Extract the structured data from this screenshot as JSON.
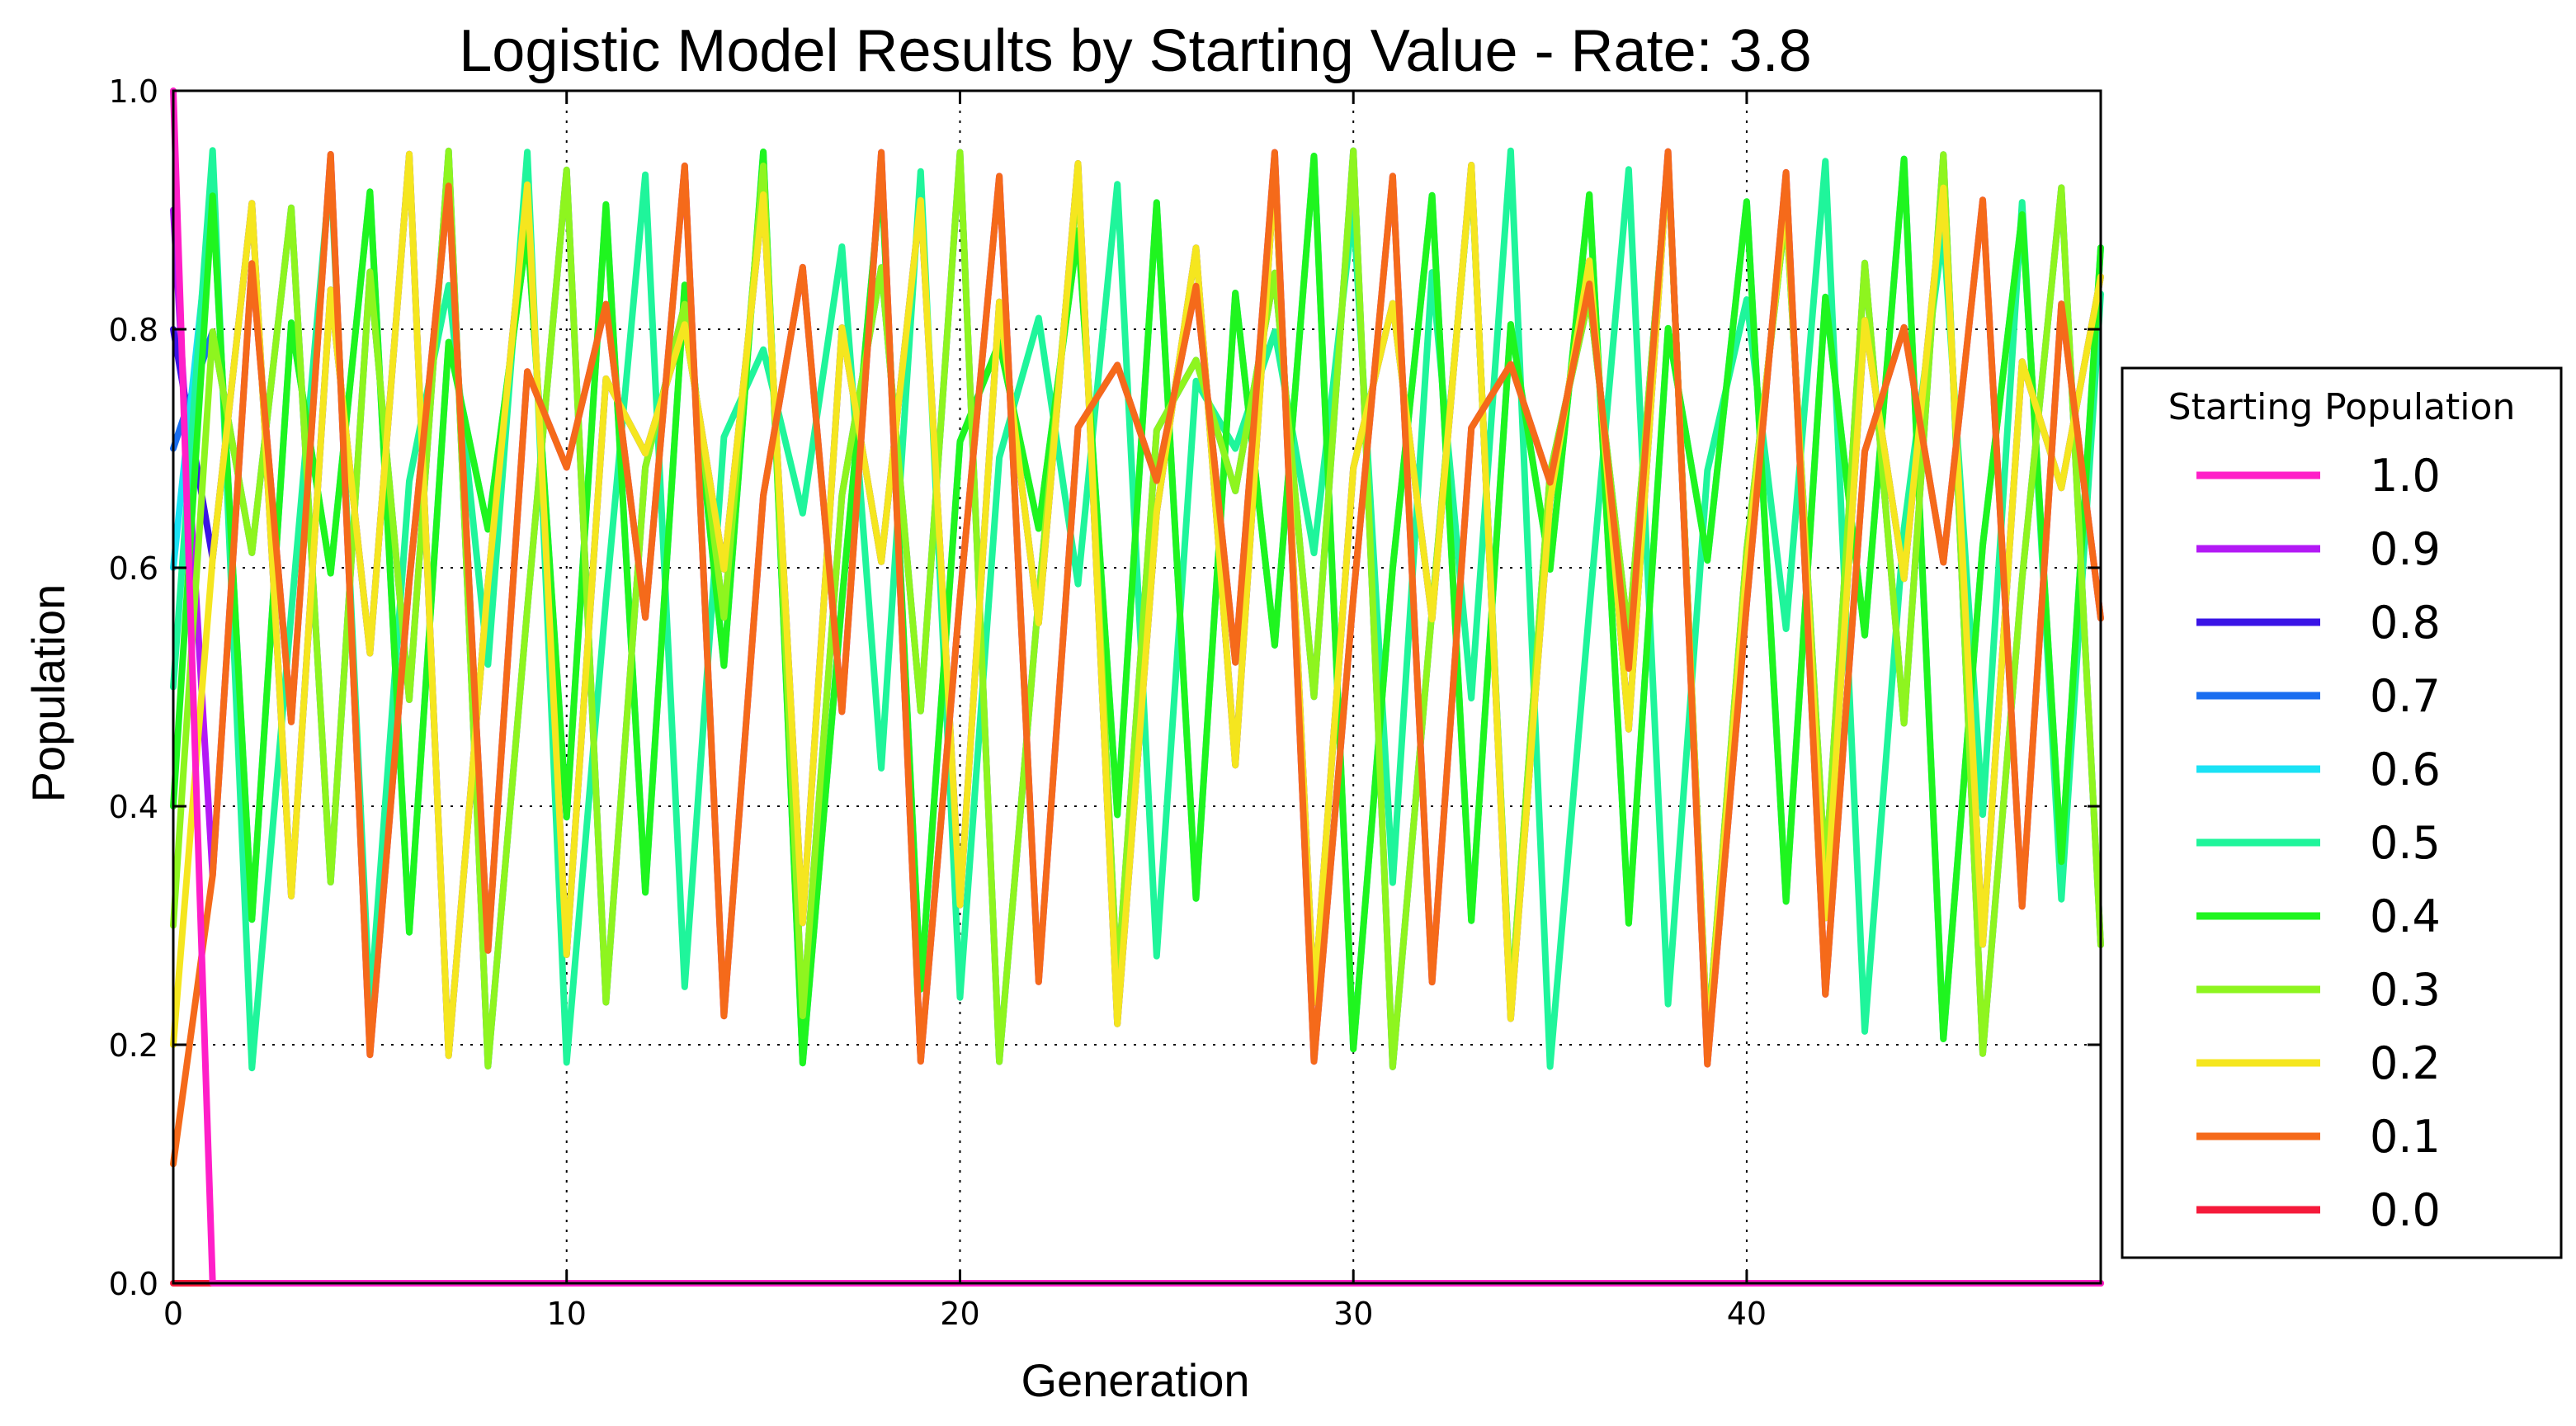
{
  "chart_data": {
    "type": "line",
    "title": "Logistic Model Results by Starting Value - Rate: 3.8",
    "xlabel": "Generation",
    "ylabel": "Population",
    "xlim": [
      0,
      49
    ],
    "ylim": [
      0.0,
      1.0
    ],
    "x_ticks": [
      0,
      10,
      20,
      30,
      40
    ],
    "x_tick_labels": [
      "0",
      "10",
      "20",
      "30",
      "40"
    ],
    "y_ticks": [
      0.0,
      0.2,
      0.4,
      0.6,
      0.8,
      1.0
    ],
    "y_tick_labels": [
      "0.0",
      "0.2",
      "0.4",
      "0.6",
      "0.8",
      "1.0"
    ],
    "grid": true,
    "legend_title": "Starting Population",
    "legend_position": "outside-right",
    "rate": 3.8,
    "generations": 50,
    "series": [
      {
        "name": "1.0",
        "color": "#ff1fc8",
        "start": 1.0
      },
      {
        "name": "0.9",
        "color": "#b319f5",
        "start": 0.9
      },
      {
        "name": "0.8",
        "color": "#3a14e6",
        "start": 0.8
      },
      {
        "name": "0.7",
        "color": "#1a6ef0",
        "start": 0.7
      },
      {
        "name": "0.6",
        "color": "#1ae2f5",
        "start": 0.6
      },
      {
        "name": "0.5",
        "color": "#1ff59b",
        "start": 0.5
      },
      {
        "name": "0.4",
        "color": "#1ff51f",
        "start": 0.4
      },
      {
        "name": "0.3",
        "color": "#8ef51f",
        "start": 0.3
      },
      {
        "name": "0.2",
        "color": "#f5e61f",
        "start": 0.2
      },
      {
        "name": "0.1",
        "color": "#f56a1a",
        "start": 0.1
      },
      {
        "name": "0.0",
        "color": "#f51a3a",
        "start": 0.0
      }
    ],
    "draw_order": [
      "0.0",
      "0.9",
      "0.8",
      "0.7",
      "0.6",
      "0.5",
      "0.4",
      "0.3",
      "0.2",
      "0.1",
      "1.0"
    ]
  }
}
